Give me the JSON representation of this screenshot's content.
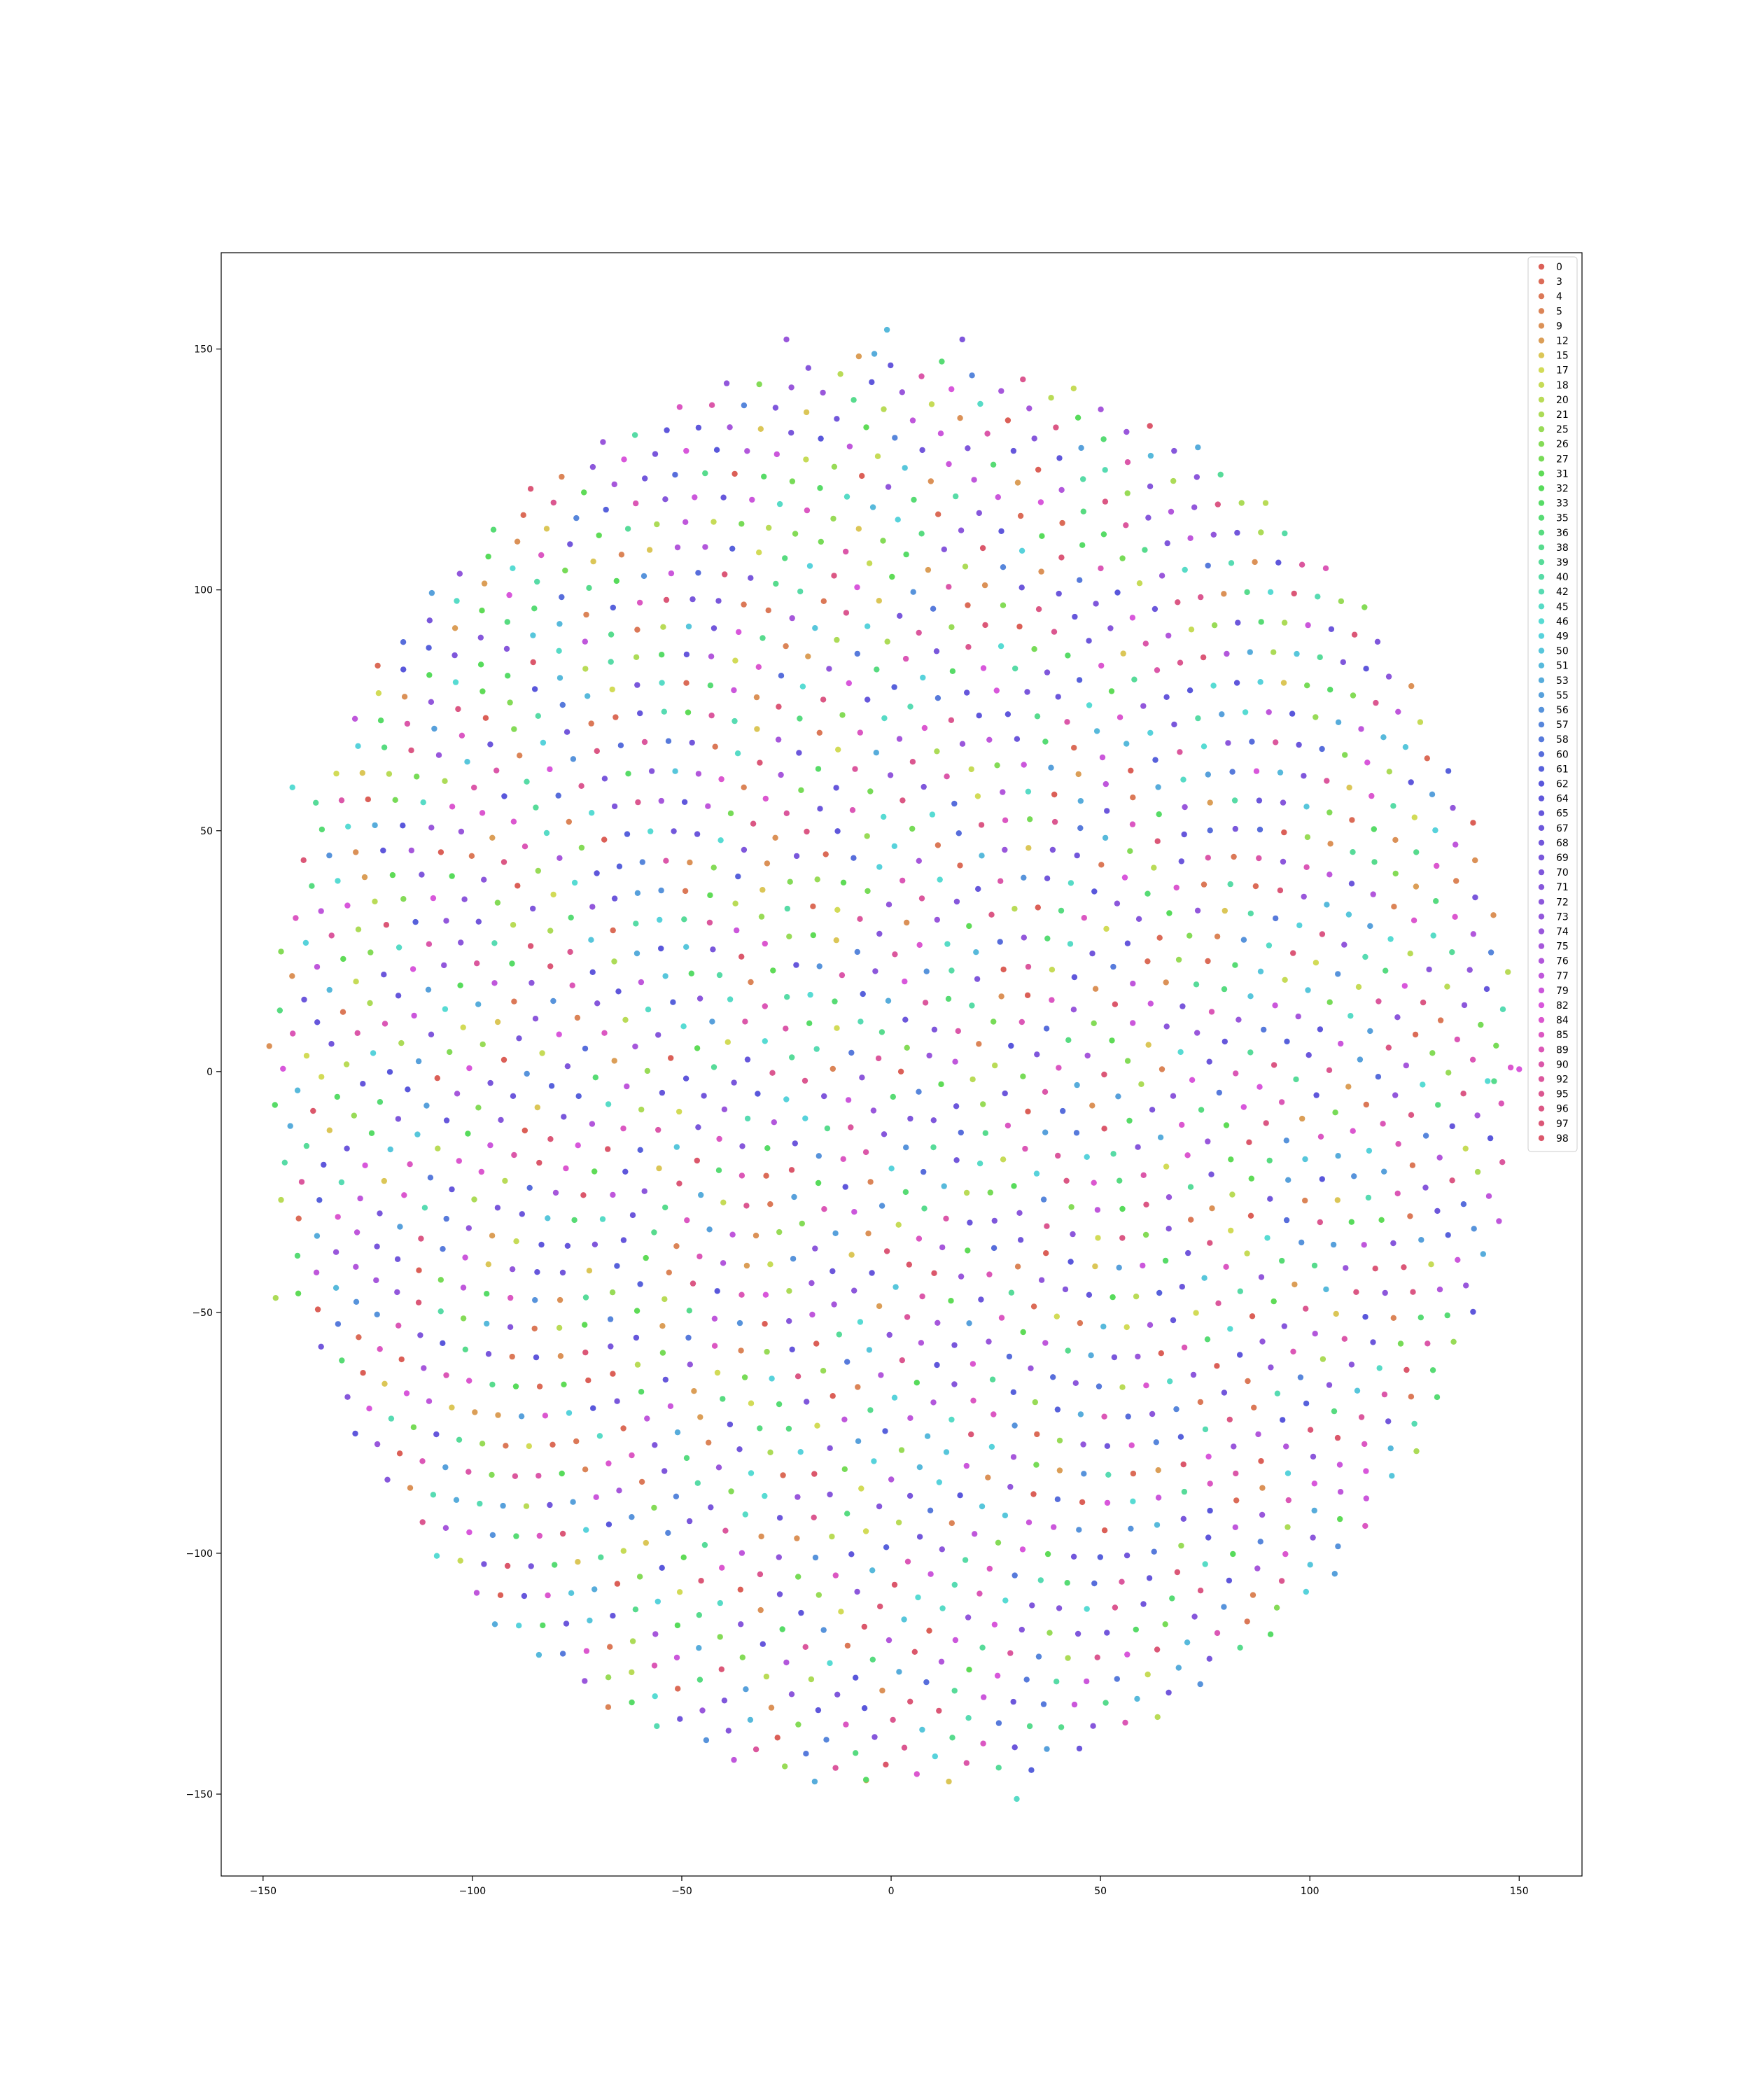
{
  "chart_data": {
    "type": "scatter",
    "title": "",
    "xlabel": "",
    "ylabel": "",
    "xlim": [
      -160,
      165
    ],
    "ylim": [
      -167,
      170
    ],
    "xticks": [
      -150,
      -100,
      -50,
      0,
      50,
      100,
      150
    ],
    "yticks": [
      -150,
      -100,
      -50,
      0,
      50,
      100,
      150
    ],
    "xtick_labels": [
      "−150",
      "−100",
      "−50",
      "0",
      "50",
      "100",
      "150"
    ],
    "ytick_labels": [
      "−150",
      "−100",
      "−50",
      "0",
      "50",
      "100",
      "150"
    ],
    "grid": false,
    "legend_position": "top-right",
    "distribution": "sunflower spiral disc centred near (0, 0), radius about 150, about 2000 points",
    "point_count": 2000,
    "outlier_points": [
      {
        "x": -25,
        "y": 152,
        "series": "74"
      },
      {
        "x": -1,
        "y": 154,
        "series": "51"
      },
      {
        "x": -4,
        "y": 149,
        "series": "53"
      },
      {
        "x": 17,
        "y": 152,
        "series": "70"
      },
      {
        "x": -147,
        "y": -47,
        "series": "21"
      },
      {
        "x": 30,
        "y": -151,
        "series": "45"
      },
      {
        "x": -6,
        "y": -147,
        "series": "33"
      },
      {
        "x": 150,
        "y": 0.5,
        "series": "82"
      },
      {
        "x": 144,
        "y": -2,
        "series": "38"
      },
      {
        "x": -143,
        "y": 59,
        "series": "46"
      }
    ],
    "series": [
      {
        "name": "0",
        "color": "#db5f57"
      },
      {
        "name": "3",
        "color": "#db6b57"
      },
      {
        "name": "4",
        "color": "#db7857"
      },
      {
        "name": "5",
        "color": "#db8457"
      },
      {
        "name": "9",
        "color": "#db9157"
      },
      {
        "name": "12",
        "color": "#db9e57"
      },
      {
        "name": "15",
        "color": "#dbc657"
      },
      {
        "name": "17",
        "color": "#d2db57"
      },
      {
        "name": "18",
        "color": "#c6db57"
      },
      {
        "name": "20",
        "color": "#b9db57"
      },
      {
        "name": "21",
        "color": "#acdb57"
      },
      {
        "name": "25",
        "color": "#98db57"
      },
      {
        "name": "26",
        "color": "#84db57"
      },
      {
        "name": "27",
        "color": "#77db57"
      },
      {
        "name": "31",
        "color": "#5fdb57"
      },
      {
        "name": "32",
        "color": "#57db5b"
      },
      {
        "name": "33",
        "color": "#57db67"
      },
      {
        "name": "35",
        "color": "#57db74"
      },
      {
        "name": "36",
        "color": "#57db80"
      },
      {
        "name": "38",
        "color": "#57db8d"
      },
      {
        "name": "39",
        "color": "#57db99"
      },
      {
        "name": "40",
        "color": "#57dba6"
      },
      {
        "name": "42",
        "color": "#57dbb2"
      },
      {
        "name": "45",
        "color": "#57dbc6"
      },
      {
        "name": "46",
        "color": "#57dbd3"
      },
      {
        "name": "49",
        "color": "#57d2db"
      },
      {
        "name": "50",
        "color": "#57c6db"
      },
      {
        "name": "51",
        "color": "#57b9db"
      },
      {
        "name": "53",
        "color": "#57acdb"
      },
      {
        "name": "55",
        "color": "#57a0db"
      },
      {
        "name": "56",
        "color": "#5793db"
      },
      {
        "name": "57",
        "color": "#5786db"
      },
      {
        "name": "58",
        "color": "#577adb"
      },
      {
        "name": "60",
        "color": "#576ddb"
      },
      {
        "name": "61",
        "color": "#5761db"
      },
      {
        "name": "62",
        "color": "#5957db"
      },
      {
        "name": "64",
        "color": "#5f57db"
      },
      {
        "name": "65",
        "color": "#6657db"
      },
      {
        "name": "67",
        "color": "#6c57db"
      },
      {
        "name": "68",
        "color": "#7257db"
      },
      {
        "name": "69",
        "color": "#7957db"
      },
      {
        "name": "70",
        "color": "#7f57db"
      },
      {
        "name": "71",
        "color": "#8657db"
      },
      {
        "name": "72",
        "color": "#8c57db"
      },
      {
        "name": "73",
        "color": "#9257db"
      },
      {
        "name": "74",
        "color": "#9957db"
      },
      {
        "name": "75",
        "color": "#a657db"
      },
      {
        "name": "76",
        "color": "#b257db"
      },
      {
        "name": "77",
        "color": "#bf57db"
      },
      {
        "name": "79",
        "color": "#cb57db"
      },
      {
        "name": "82",
        "color": "#d857db"
      },
      {
        "name": "84",
        "color": "#db57cf"
      },
      {
        "name": "85",
        "color": "#db57c2"
      },
      {
        "name": "89",
        "color": "#db57b6"
      },
      {
        "name": "90",
        "color": "#db57a9"
      },
      {
        "name": "92",
        "color": "#db579d"
      },
      {
        "name": "95",
        "color": "#db5790"
      },
      {
        "name": "96",
        "color": "#db5784"
      },
      {
        "name": "97",
        "color": "#db5777"
      },
      {
        "name": "98",
        "color": "#db576b"
      }
    ]
  }
}
